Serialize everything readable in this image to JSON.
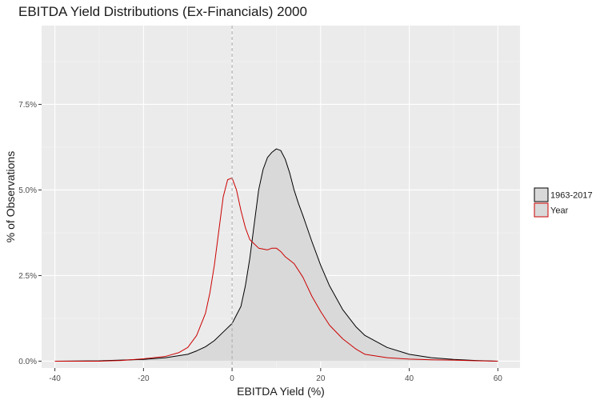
{
  "chart_data": {
    "type": "area",
    "title": "EBITDA Yield Distributions (Ex-Financials) 2000",
    "xlabel": "EBITDA Yield (%)",
    "ylabel": "% of Observations",
    "xlim": [
      -43,
      65
    ],
    "ylim": [
      -0.2,
      9.8
    ],
    "x_ticks": [
      {
        "value": -40,
        "label": "-40"
      },
      {
        "value": -20,
        "label": "-20"
      },
      {
        "value": 0,
        "label": "0"
      },
      {
        "value": 20,
        "label": "20"
      },
      {
        "value": 40,
        "label": "40"
      },
      {
        "value": 60,
        "label": "60"
      }
    ],
    "y_ticks": [
      {
        "value": 0,
        "label": "0.0%"
      },
      {
        "value": 2.5,
        "label": "2.5%"
      },
      {
        "value": 5.0,
        "label": "5.0%"
      },
      {
        "value": 7.5,
        "label": "7.5%"
      }
    ],
    "grid": true,
    "vline_x": 0,
    "legend_position": "right",
    "series": [
      {
        "name": "1963-2017",
        "color": "#000000",
        "fill": "#d9d9d9",
        "x": [
          -40,
          -30,
          -20,
          -15,
          -10,
          -8,
          -6,
          -4,
          -2,
          0,
          2,
          3,
          4,
          5,
          6,
          7,
          8,
          9,
          10,
          11,
          12,
          13,
          14,
          15,
          16,
          18,
          20,
          22,
          25,
          28,
          30,
          35,
          40,
          45,
          50,
          55,
          60
        ],
        "y": [
          0.0,
          0.01,
          0.05,
          0.1,
          0.2,
          0.3,
          0.42,
          0.6,
          0.85,
          1.1,
          1.6,
          2.2,
          3.0,
          4.0,
          5.0,
          5.6,
          5.95,
          6.1,
          6.2,
          6.15,
          5.9,
          5.5,
          5.0,
          4.6,
          4.25,
          3.5,
          2.8,
          2.2,
          1.5,
          1.0,
          0.75,
          0.4,
          0.2,
          0.1,
          0.05,
          0.02,
          0.0
        ]
      },
      {
        "name": "Year",
        "color": "#cc0000",
        "fill": "none",
        "x": [
          -40,
          -30,
          -25,
          -20,
          -15,
          -12,
          -10,
          -8,
          -6,
          -5,
          -4,
          -3,
          -2,
          -1,
          0,
          1,
          2,
          3,
          4,
          6,
          8,
          9,
          10,
          11,
          12,
          14,
          16,
          18,
          20,
          22,
          25,
          28,
          30,
          35,
          40,
          45,
          50,
          55,
          60
        ],
        "y": [
          0.0,
          0.0,
          0.02,
          0.07,
          0.14,
          0.25,
          0.4,
          0.75,
          1.4,
          2.0,
          2.8,
          3.8,
          4.8,
          5.3,
          5.35,
          5.0,
          4.4,
          3.9,
          3.55,
          3.3,
          3.25,
          3.3,
          3.3,
          3.2,
          3.05,
          2.85,
          2.45,
          1.9,
          1.45,
          1.05,
          0.65,
          0.35,
          0.2,
          0.1,
          0.06,
          0.04,
          0.03,
          0.01,
          0.0
        ]
      }
    ]
  }
}
